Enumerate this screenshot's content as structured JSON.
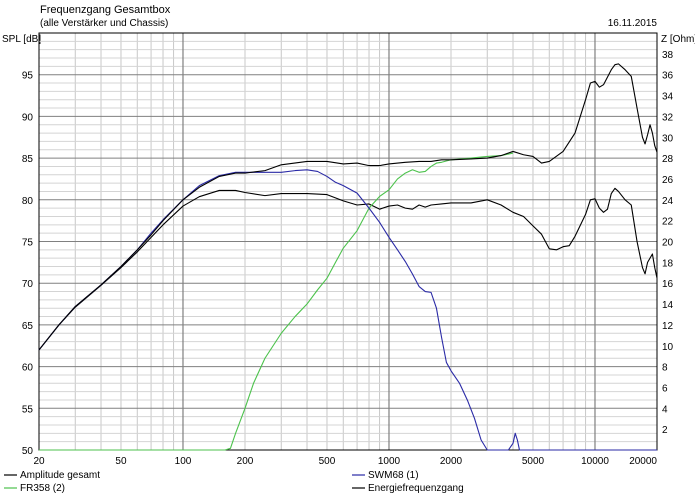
{
  "chart_data": {
    "type": "line",
    "title": "Frequenzgang Gesamtbox",
    "subtitle": "(alle Verstärker und Chassis)",
    "date": "16.11.2015",
    "ylabel": "SPL [dB]",
    "y2label": "Z [Ohm]",
    "xscale": "log",
    "xlim": [
      20,
      20000
    ],
    "ylim": [
      50,
      100
    ],
    "y2lim": [
      0,
      40
    ],
    "x_ticks": [
      20,
      50,
      100,
      200,
      500,
      1000,
      2000,
      5000,
      10000,
      20000
    ],
    "x_tick_labels": [
      "20",
      "50",
      "100",
      "200",
      "500",
      "1000",
      "2000",
      "5000",
      "10000",
      "20000"
    ],
    "y_ticks": [
      50,
      55,
      60,
      65,
      70,
      75,
      80,
      85,
      90,
      95
    ],
    "y_tick_labels": [
      "50",
      "55",
      "60",
      "65",
      "70",
      "75",
      "80",
      "85",
      "90",
      "95"
    ],
    "y2_ticks": [
      2,
      4,
      6,
      8,
      10,
      12,
      14,
      16,
      18,
      20,
      22,
      24,
      26,
      28,
      30,
      32,
      34,
      36,
      38
    ],
    "y2_tick_labels": [
      "2",
      "4",
      "6",
      "8",
      "10",
      "12",
      "14",
      "16",
      "18",
      "20",
      "22",
      "24",
      "26",
      "28",
      "30",
      "32",
      "34",
      "36",
      "38"
    ],
    "grid": true,
    "series": [
      {
        "name": "Amplitude gesamt",
        "color": "#000000",
        "axis": "left",
        "points": [
          [
            20,
            62
          ],
          [
            25,
            65
          ],
          [
            30,
            67.2
          ],
          [
            40,
            69.8
          ],
          [
            50,
            72
          ],
          [
            60,
            74
          ],
          [
            70,
            75.8
          ],
          [
            80,
            77.5
          ],
          [
            100,
            80
          ],
          [
            120,
            81.5
          ],
          [
            150,
            82.8
          ],
          [
            180,
            83.2
          ],
          [
            200,
            83.2
          ],
          [
            250,
            83.5
          ],
          [
            300,
            84.2
          ],
          [
            400,
            84.6
          ],
          [
            500,
            84.6
          ],
          [
            600,
            84.3
          ],
          [
            700,
            84.4
          ],
          [
            800,
            84.1
          ],
          [
            900,
            84.1
          ],
          [
            1000,
            84.3
          ],
          [
            1200,
            84.5
          ],
          [
            1400,
            84.6
          ],
          [
            1600,
            84.6
          ],
          [
            1800,
            84.8
          ],
          [
            2000,
            84.8
          ],
          [
            2500,
            84.9
          ],
          [
            3000,
            85
          ],
          [
            3500,
            85.3
          ],
          [
            4000,
            85.8
          ],
          [
            4500,
            85.4
          ],
          [
            5000,
            85.2
          ],
          [
            5500,
            84.4
          ],
          [
            6000,
            84.6
          ],
          [
            7000,
            85.8
          ],
          [
            8000,
            88
          ],
          [
            9000,
            92
          ],
          [
            9500,
            94
          ],
          [
            10000,
            94.2
          ],
          [
            10500,
            93.5
          ],
          [
            11000,
            93.8
          ],
          [
            12000,
            95.6
          ],
          [
            12500,
            96.2
          ],
          [
            13000,
            96.3
          ],
          [
            14000,
            95.6
          ],
          [
            15000,
            94.8
          ],
          [
            16000,
            91
          ],
          [
            17000,
            87.5
          ],
          [
            17500,
            86.7
          ],
          [
            18000,
            87.8
          ],
          [
            18500,
            89
          ],
          [
            19000,
            88
          ],
          [
            19500,
            86.5
          ],
          [
            20000,
            85.7
          ]
        ]
      },
      {
        "name": "SWM68 (1)",
        "color": "#2a2aa6",
        "axis": "left",
        "points": [
          [
            20,
            62
          ],
          [
            25,
            65
          ],
          [
            30,
            67.2
          ],
          [
            40,
            69.8
          ],
          [
            50,
            72
          ],
          [
            60,
            74
          ],
          [
            70,
            76
          ],
          [
            80,
            77.6
          ],
          [
            100,
            80
          ],
          [
            120,
            81.7
          ],
          [
            150,
            82.9
          ],
          [
            180,
            83.3
          ],
          [
            200,
            83.3
          ],
          [
            250,
            83.3
          ],
          [
            300,
            83.3
          ],
          [
            350,
            83.5
          ],
          [
            400,
            83.6
          ],
          [
            450,
            83.4
          ],
          [
            500,
            82.8
          ],
          [
            550,
            82.1
          ],
          [
            600,
            81.7
          ],
          [
            700,
            80.8
          ],
          [
            800,
            79
          ],
          [
            900,
            77.3
          ],
          [
            1000,
            75.5
          ],
          [
            1100,
            74
          ],
          [
            1200,
            72.6
          ],
          [
            1300,
            71.1
          ],
          [
            1400,
            69.6
          ],
          [
            1500,
            69
          ],
          [
            1600,
            68.9
          ],
          [
            1700,
            67
          ],
          [
            1800,
            63.5
          ],
          [
            1900,
            60.5
          ],
          [
            2000,
            59.5
          ],
          [
            2200,
            58
          ],
          [
            2400,
            56
          ],
          [
            2600,
            53.8
          ],
          [
            2800,
            51.2
          ],
          [
            3000,
            50
          ],
          [
            3500,
            50
          ],
          [
            3800,
            50
          ],
          [
            4000,
            50.8
          ],
          [
            4100,
            52
          ],
          [
            4200,
            51.2
          ],
          [
            4300,
            50
          ],
          [
            5000,
            50
          ],
          [
            20000,
            50
          ]
        ]
      },
      {
        "name": "FR358 (2)",
        "color": "#4cc24c",
        "axis": "left",
        "points": [
          [
            20,
            50
          ],
          [
            160,
            50
          ],
          [
            170,
            50.2
          ],
          [
            180,
            52
          ],
          [
            200,
            55
          ],
          [
            220,
            58
          ],
          [
            250,
            61
          ],
          [
            300,
            64
          ],
          [
            350,
            66
          ],
          [
            400,
            67.5
          ],
          [
            450,
            69.2
          ],
          [
            500,
            70.6
          ],
          [
            550,
            72.5
          ],
          [
            600,
            74.2
          ],
          [
            700,
            76.3
          ],
          [
            800,
            79
          ],
          [
            900,
            80.4
          ],
          [
            1000,
            81.2
          ],
          [
            1100,
            82.5
          ],
          [
            1200,
            83.2
          ],
          [
            1300,
            83.6
          ],
          [
            1400,
            83.3
          ],
          [
            1500,
            83.4
          ],
          [
            1600,
            84
          ],
          [
            1700,
            84.4
          ],
          [
            1800,
            84.5
          ],
          [
            2000,
            84.8
          ],
          [
            2500,
            85
          ],
          [
            3000,
            85.2
          ],
          [
            3500,
            85.3
          ],
          [
            4000,
            85.6
          ]
        ]
      },
      {
        "name": "Energiefrequenzgang",
        "color": "#000000",
        "axis": "right",
        "points": [
          [
            20,
            9.6
          ],
          [
            25,
            12
          ],
          [
            30,
            13.7
          ],
          [
            40,
            15.8
          ],
          [
            50,
            17.5
          ],
          [
            60,
            19
          ],
          [
            70,
            20.4
          ],
          [
            80,
            21.6
          ],
          [
            100,
            23.4
          ],
          [
            120,
            24.3
          ],
          [
            150,
            24.9
          ],
          [
            180,
            24.9
          ],
          [
            200,
            24.7
          ],
          [
            250,
            24.4
          ],
          [
            300,
            24.6
          ],
          [
            400,
            24.6
          ],
          [
            500,
            24.5
          ],
          [
            600,
            23.9
          ],
          [
            700,
            23.5
          ],
          [
            800,
            23.6
          ],
          [
            900,
            23.1
          ],
          [
            1000,
            23.4
          ],
          [
            1100,
            23.5
          ],
          [
            1200,
            23.2
          ],
          [
            1300,
            23.1
          ],
          [
            1400,
            23.5
          ],
          [
            1500,
            23.3
          ],
          [
            1600,
            23.5
          ],
          [
            1800,
            23.6
          ],
          [
            2000,
            23.7
          ],
          [
            2500,
            23.7
          ],
          [
            3000,
            24
          ],
          [
            3500,
            23.5
          ],
          [
            4000,
            22.8
          ],
          [
            4500,
            22.4
          ],
          [
            5000,
            21.5
          ],
          [
            5500,
            20.7
          ],
          [
            6000,
            19.3
          ],
          [
            6500,
            19.2
          ],
          [
            7000,
            19.5
          ],
          [
            7500,
            19.6
          ],
          [
            8000,
            20.5
          ],
          [
            9000,
            22.6
          ],
          [
            9500,
            24
          ],
          [
            10000,
            24.1
          ],
          [
            10500,
            23.2
          ],
          [
            11000,
            22.8
          ],
          [
            11500,
            23.1
          ],
          [
            12000,
            24.6
          ],
          [
            12500,
            25.1
          ],
          [
            13000,
            24.8
          ],
          [
            14000,
            24
          ],
          [
            15000,
            23.5
          ],
          [
            16000,
            20
          ],
          [
            17000,
            17.5
          ],
          [
            17500,
            16.9
          ],
          [
            18000,
            18
          ],
          [
            19000,
            18.8
          ],
          [
            19500,
            17.5
          ],
          [
            20000,
            16.5
          ]
        ]
      }
    ]
  }
}
